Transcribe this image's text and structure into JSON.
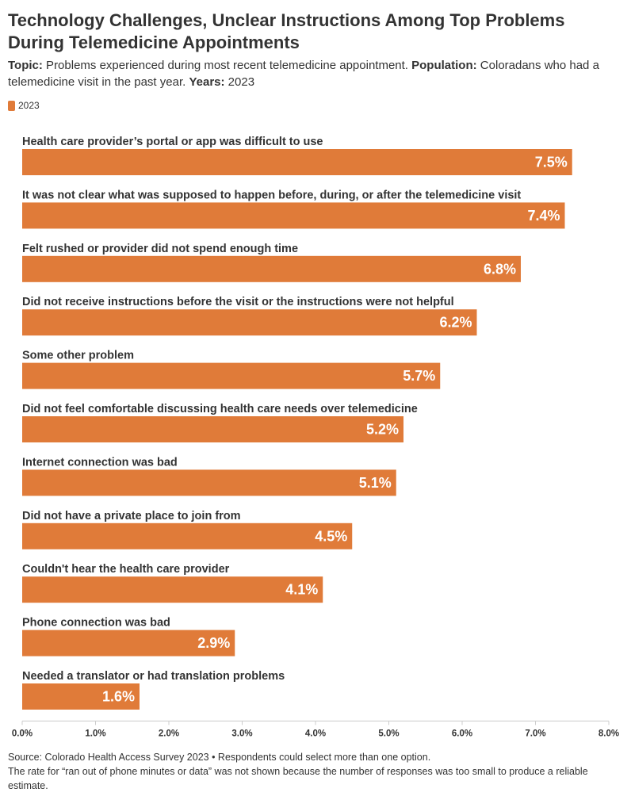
{
  "title": "Technology Challenges, Unclear Instructions Among Top Problems During Telemedicine Appointments",
  "subtitle": {
    "topic_label": "Topic:",
    "topic_text": " Problems experienced during most recent telemedicine appointment. ",
    "population_label": "Population:",
    "population_text": " Coloradans who had a telemedicine visit in the past year. ",
    "years_label": "Years:",
    "years_text": " 2023"
  },
  "colors": {
    "bar": "#e07b39",
    "axis": "#cccccc",
    "text": "#333333",
    "label_on_bar": "#ffffff"
  },
  "chart_data": {
    "type": "bar",
    "orientation": "horizontal",
    "categories": [
      "Health care provider’s portal or app was difficult to use",
      "It was not clear what was supposed to happen before, during, or after the telemedicine visit",
      "Felt rushed or provider did not spend enough time",
      "Did not receive instructions before the visit or the instructions were not helpful",
      "Some other problem",
      "Did not feel comfortable discussing health care needs over telemedicine",
      "Internet connection was bad",
      "Did not have a private place to join from",
      "Couldn't hear the health care provider",
      "Phone connection was bad",
      "Needed a translator or had translation problems"
    ],
    "series": [
      {
        "name": "2023",
        "values": [
          7.5,
          7.4,
          6.8,
          6.2,
          5.7,
          5.2,
          5.1,
          4.5,
          4.1,
          2.9,
          1.6
        ],
        "labels": [
          "7.5%",
          "7.4%",
          "6.8%",
          "6.2%",
          "5.7%",
          "5.2%",
          "5.1%",
          "4.5%",
          "4.1%",
          "2.9%",
          "1.6%"
        ]
      }
    ],
    "xlim": [
      0,
      8
    ],
    "xticks": [
      "0.0%",
      "1.0%",
      "2.0%",
      "3.0%",
      "4.0%",
      "5.0%",
      "6.0%",
      "7.0%",
      "8.0%"
    ],
    "legend_position": "top-left",
    "grid": false
  },
  "footer": {
    "line1": "Source: Colorado Health Access Survey 2023 • Respondents could select more than one option.",
    "line2": "The rate for “ran out of phone minutes or data” was not shown because the number of responses was too small to produce a reliable estimate."
  }
}
